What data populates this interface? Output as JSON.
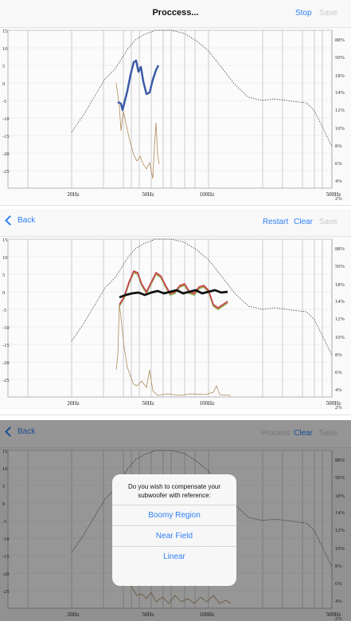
{
  "colors": {
    "accent": "#2f7ff5",
    "disabled": "#c8c8c8",
    "target_curve": "#444444",
    "measurement_blue": "#3a5aa8",
    "measurement_brown": "#b08a5a",
    "average_black": "#111111",
    "curve_red": "#c04050",
    "curve_orange": "#e09040",
    "curve_green": "#60b050"
  },
  "axis": {
    "left_ticks": [
      "15",
      "10",
      "5",
      "0",
      "-5",
      "-10",
      "-15",
      "-20",
      "-25"
    ],
    "right_ticks": [
      "88%",
      "50%",
      "18%",
      "14%",
      "12%",
      "10%",
      "8%",
      "6%",
      "4%",
      "2%"
    ],
    "x_ticks": [
      "20Hz",
      "50Hz",
      "100Hz",
      "500Hz"
    ]
  },
  "panel1": {
    "title": "Proccess...",
    "stop_label": "Stop",
    "save_label": "Save"
  },
  "panel2": {
    "back_label": "Back",
    "restart_label": "Restart",
    "clear_label": "Clear",
    "save_label": "Save"
  },
  "panel3": {
    "back_label": "Back",
    "process_label": "Process",
    "clear_label": "Clear",
    "save_label": "Save",
    "dialog": {
      "message": "Do you wish to compensate your subwoofer with reference:",
      "options": [
        "Boomy Region",
        "Near Field",
        "Linear"
      ]
    }
  }
}
